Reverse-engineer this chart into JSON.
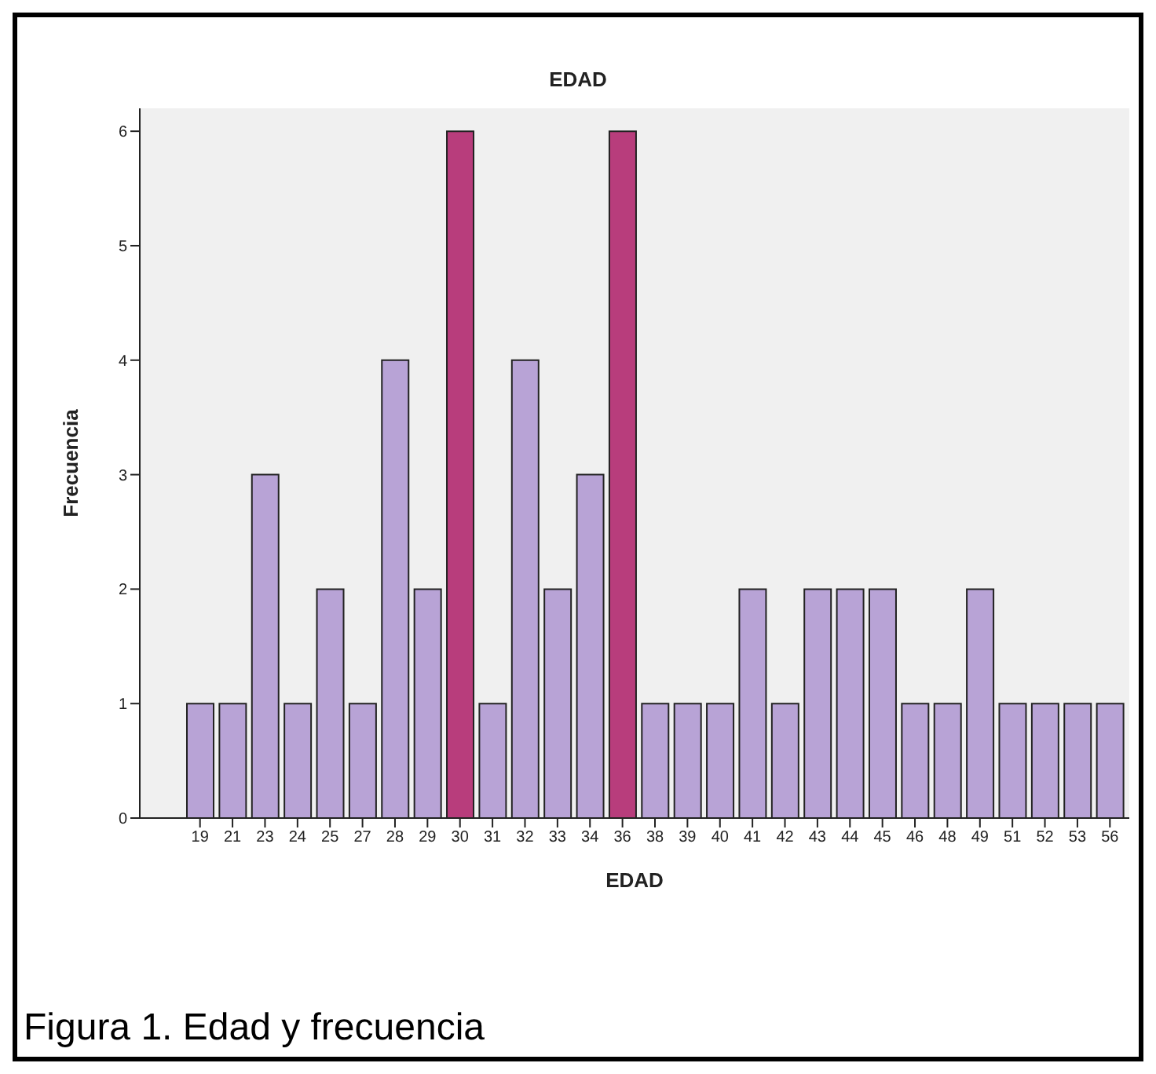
{
  "chart_data": {
    "type": "bar",
    "title": "EDAD",
    "xlabel": "EDAD",
    "ylabel": "Frecuencia",
    "categories": [
      "19",
      "21",
      "23",
      "24",
      "25",
      "27",
      "28",
      "29",
      "30",
      "31",
      "32",
      "33",
      "34",
      "36",
      "38",
      "39",
      "40",
      "41",
      "42",
      "43",
      "44",
      "45",
      "46",
      "48",
      "49",
      "51",
      "52",
      "53",
      "56"
    ],
    "values": [
      1,
      1,
      3,
      1,
      2,
      1,
      4,
      2,
      6,
      1,
      4,
      2,
      3,
      6,
      1,
      1,
      1,
      2,
      1,
      2,
      2,
      2,
      1,
      1,
      2,
      1,
      1,
      1,
      1
    ],
    "colors": [
      "#b8a3d6",
      "#b8a3d6",
      "#b8a3d6",
      "#b8a3d6",
      "#b8a3d6",
      "#b8a3d6",
      "#b8a3d6",
      "#b8a3d6",
      "#b83d7c",
      "#b8a3d6",
      "#b8a3d6",
      "#b8a3d6",
      "#b8a3d6",
      "#b83d7c",
      "#b8a3d6",
      "#b8a3d6",
      "#b8a3d6",
      "#b8a3d6",
      "#b8a3d6",
      "#b8a3d6",
      "#b8a3d6",
      "#b8a3d6",
      "#b8a3d6",
      "#b8a3d6",
      "#b8a3d6",
      "#b8a3d6",
      "#b8a3d6",
      "#b8a3d6",
      "#b8a3d6"
    ],
    "ylim": [
      0,
      6.2
    ],
    "yticks": [
      0,
      1,
      2,
      3,
      4,
      5,
      6
    ],
    "grid": false,
    "annotations": [
      "Figura 1. Edad y frecuencia"
    ]
  }
}
